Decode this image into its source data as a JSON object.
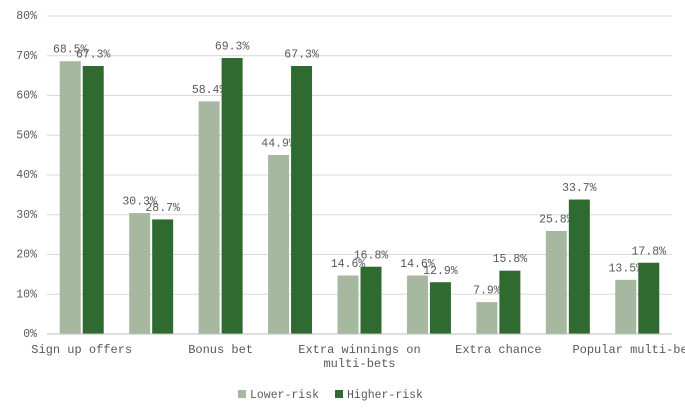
{
  "chart_data": {
    "type": "bar",
    "categories": [
      "Sign up offers",
      "Bonus bet",
      "Extra winnings on multi-bets",
      "Extra chance",
      "Popular multi-bets",
      null,
      null,
      null,
      null
    ],
    "x_labels_note_free": null,
    "series": [
      {
        "name": "Lower-risk",
        "color": "#a7b8a0",
        "values": [
          68.5,
          30.3,
          58.4,
          44.9,
          14.6,
          14.6,
          7.9,
          25.8,
          13.5
        ],
        "value_labels": [
          "68.5%",
          "30.3%",
          "58.4%",
          "44.9%",
          "14.6%",
          "14.6%",
          "7.9%",
          "25.8%",
          "13.5%"
        ]
      },
      {
        "name": "Higher-risk",
        "color": "#2f6b31",
        "values": [
          67.3,
          28.7,
          69.3,
          67.3,
          16.8,
          12.9,
          15.8,
          33.7,
          17.8
        ],
        "value_labels": [
          "67.3%",
          "28.7%",
          "69.3%",
          "67.3%",
          "16.8%",
          "12.9%",
          "15.8%",
          "33.7%",
          "17.8%"
        ]
      }
    ],
    "ylim": [
      0,
      80
    ],
    "yticks": [
      {
        "value": 0,
        "label": "0%"
      },
      {
        "value": 10,
        "label": "10%"
      },
      {
        "value": 20,
        "label": "20%"
      },
      {
        "value": 30,
        "label": "30%"
      },
      {
        "value": 40,
        "label": "40%"
      },
      {
        "value": 50,
        "label": "50%"
      },
      {
        "value": 60,
        "label": "60%"
      },
      {
        "value": 70,
        "label": "70%"
      },
      {
        "value": 80,
        "label": "80%"
      }
    ],
    "grid": true,
    "legend": "bottom"
  }
}
